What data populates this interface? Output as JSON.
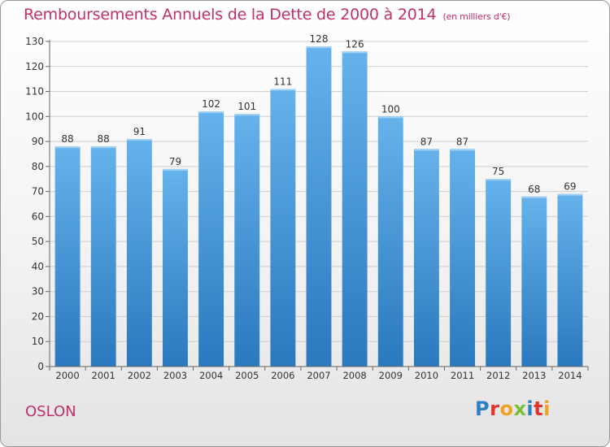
{
  "title": "Remboursements Annuels de la Dette de 2000 à 2014",
  "unit_note": "(en milliers d'€)",
  "place": "OSLON",
  "logo": {
    "letters": [
      {
        "ch": "P",
        "color": "#2f7fc4"
      },
      {
        "ch": "r",
        "color": "#e0342f"
      },
      {
        "ch": "o",
        "color": "#f0a224"
      },
      {
        "ch": "x",
        "color": "#7bbd35"
      },
      {
        "ch": "i",
        "color": "#2f7fc4"
      },
      {
        "ch": "t",
        "color": "#e0342f"
      },
      {
        "ch": "i",
        "color": "#f0a224"
      }
    ]
  },
  "colors": {
    "bar_top": "#66b2ec",
    "bar_bottom": "#2a78be",
    "title": "#c0306a",
    "grid": "#cfcfcf"
  },
  "chart_data": {
    "type": "bar",
    "categories": [
      "2000",
      "2001",
      "2002",
      "2003",
      "2004",
      "2005",
      "2006",
      "2007",
      "2008",
      "2009",
      "2010",
      "2011",
      "2012",
      "2013",
      "2014"
    ],
    "values": [
      88,
      88,
      91,
      79,
      102,
      101,
      111,
      128,
      126,
      100,
      87,
      87,
      75,
      68,
      69
    ],
    "ylim": [
      0,
      130
    ],
    "yticks": [
      0,
      10,
      20,
      30,
      40,
      50,
      60,
      70,
      80,
      90,
      100,
      110,
      120,
      130
    ],
    "grid": true,
    "data_labels": true
  }
}
